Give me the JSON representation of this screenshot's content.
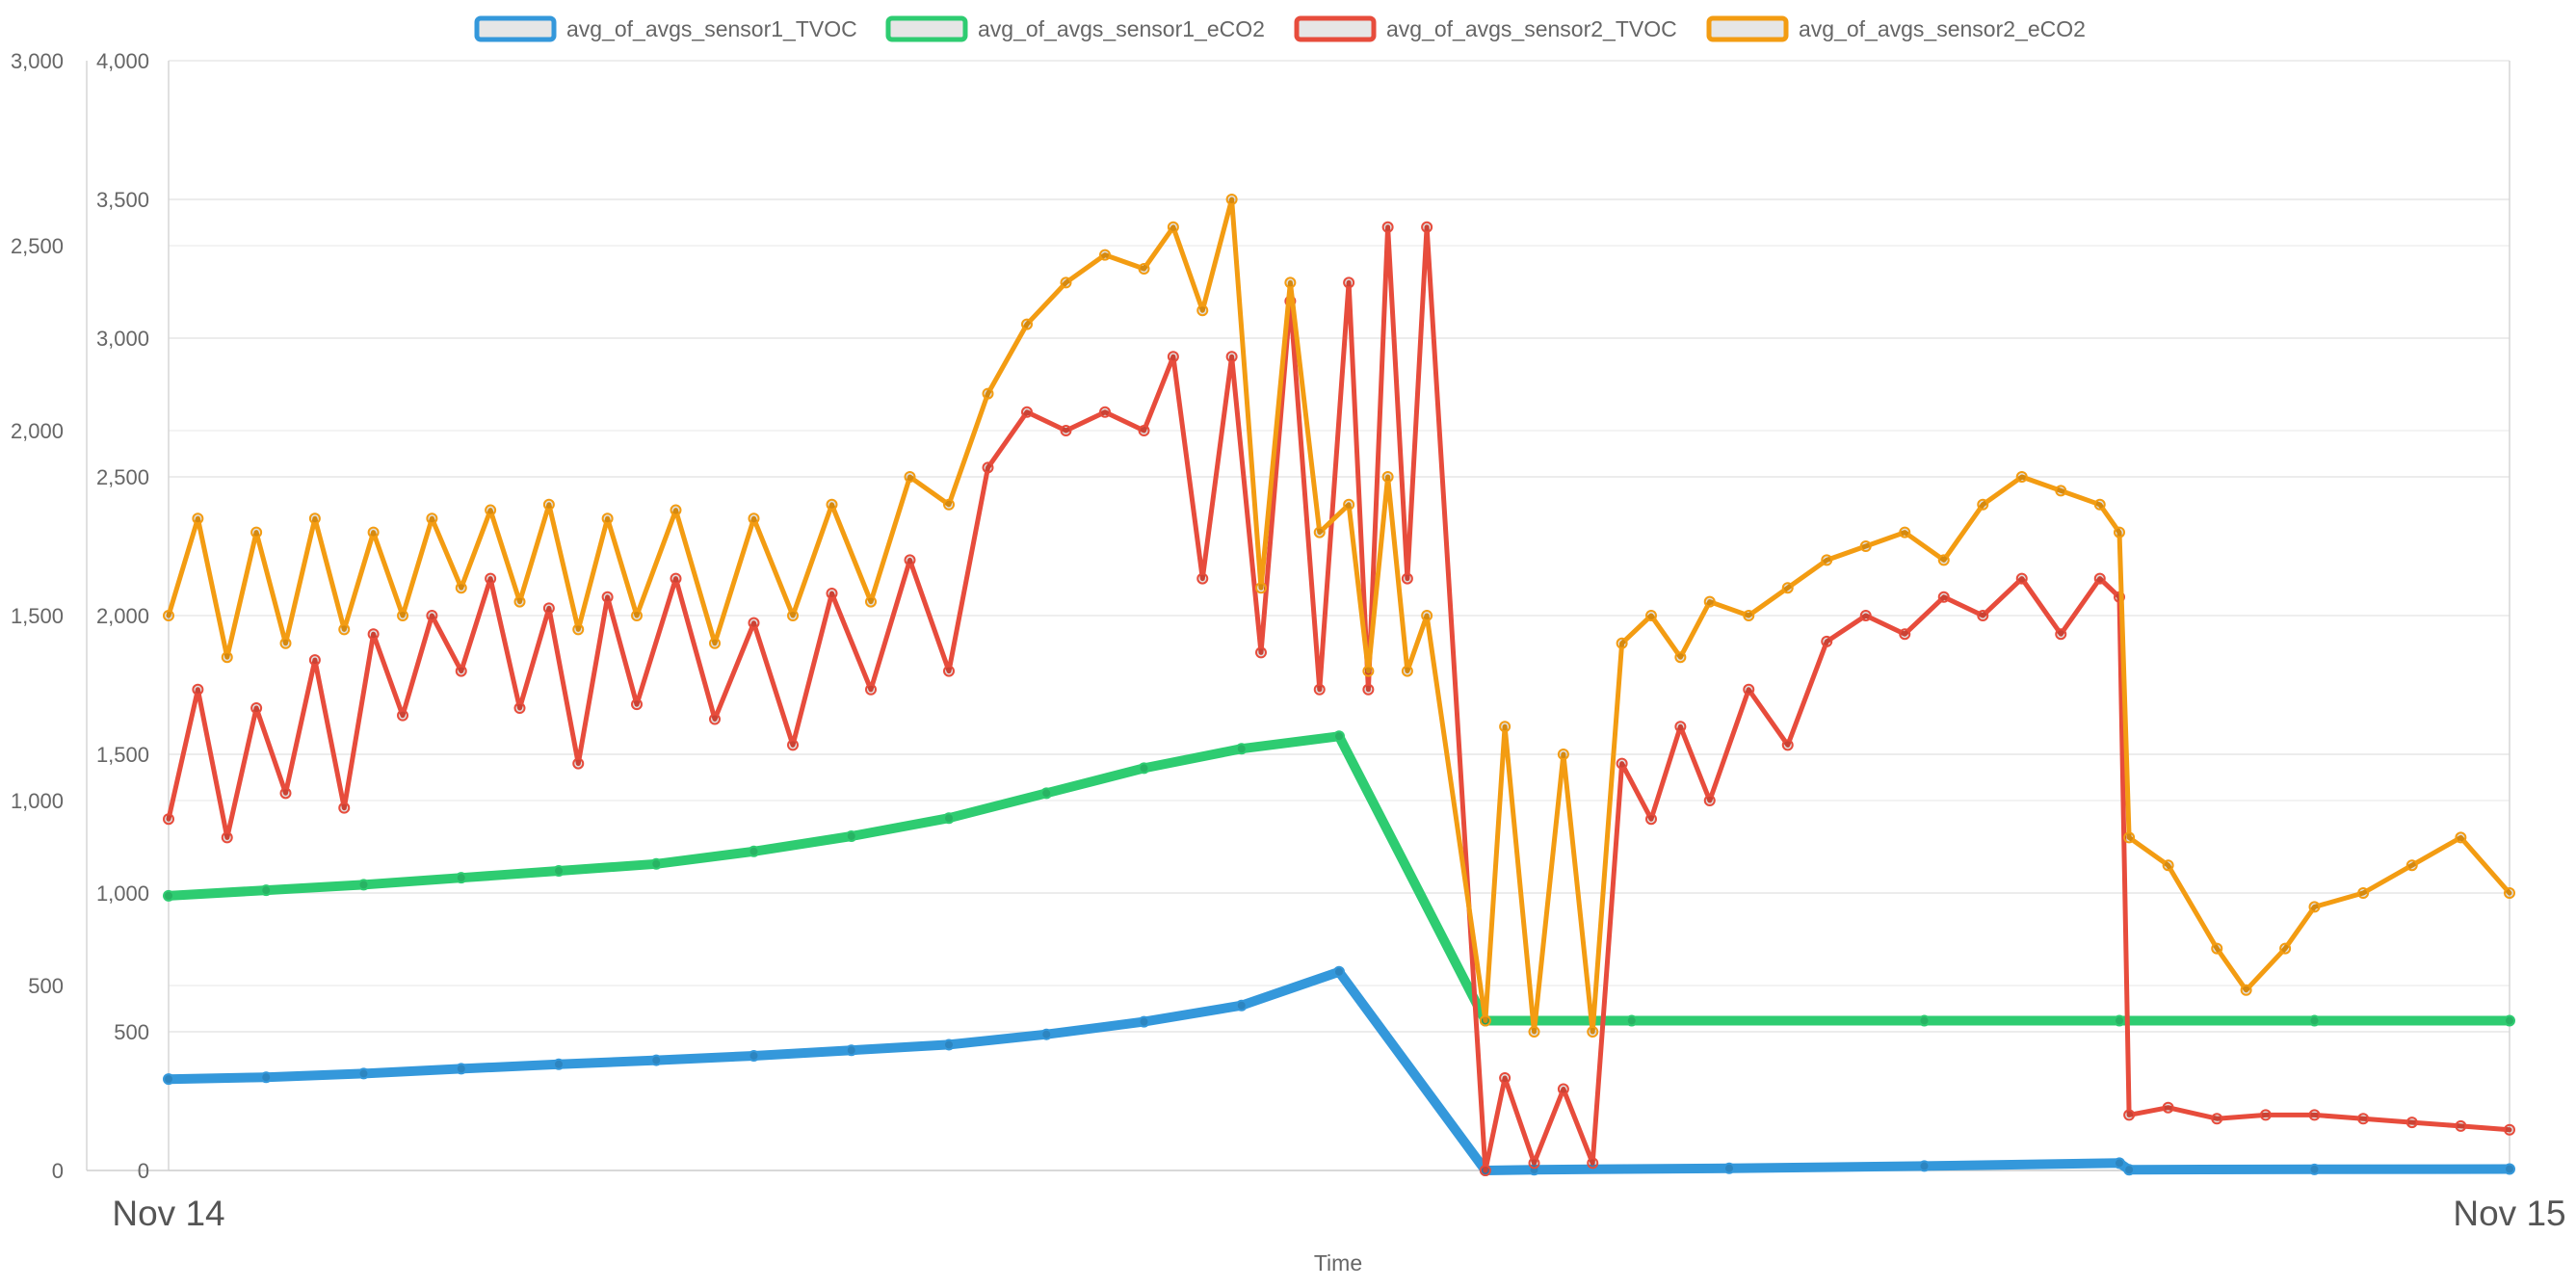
{
  "chart_data": {
    "type": "line",
    "title": "",
    "xlabel": "Time",
    "x_ticks": [
      "Nov 14",
      "Nov 15"
    ],
    "x_range_hours": [
      0,
      24
    ],
    "legend_position": "top-center",
    "grid": true,
    "y_axes": [
      {
        "id": "left",
        "range": [
          0,
          3000
        ],
        "ticks": [
          "0",
          "500",
          "1,000",
          "1,500",
          "2,000",
          "2,500",
          "3,000"
        ],
        "tick_values": [
          0,
          500,
          1000,
          1500,
          2000,
          2500,
          3000
        ]
      },
      {
        "id": "right",
        "range": [
          0,
          4000
        ],
        "ticks": [
          "0",
          "500",
          "1,000",
          "1,500",
          "2,000",
          "2,500",
          "3,000",
          "3,500",
          "4,000"
        ],
        "tick_values": [
          0,
          500,
          1000,
          1500,
          2000,
          2500,
          3000,
          3500,
          4000
        ]
      }
    ],
    "series": [
      {
        "name": "avg_of_avgs_sensor1_TVOC",
        "color": "#3498db",
        "axis": "left",
        "points": [
          [
            0,
            247
          ],
          [
            1,
            252
          ],
          [
            2,
            262
          ],
          [
            3,
            275
          ],
          [
            4,
            287
          ],
          [
            5,
            298
          ],
          [
            6,
            310
          ],
          [
            7,
            325
          ],
          [
            8,
            340
          ],
          [
            9,
            368
          ],
          [
            10,
            402
          ],
          [
            11,
            446
          ],
          [
            12,
            537
          ],
          [
            13.5,
            0
          ],
          [
            14,
            2
          ],
          [
            16,
            6
          ],
          [
            18,
            12
          ],
          [
            20,
            20
          ],
          [
            20.1,
            2
          ],
          [
            22,
            3
          ],
          [
            24,
            4
          ]
        ]
      },
      {
        "name": "avg_of_avgs_sensor1_eCO2",
        "color": "#2ecc71",
        "axis": "right",
        "points": [
          [
            0,
            990
          ],
          [
            1,
            1010
          ],
          [
            2,
            1030
          ],
          [
            3,
            1055
          ],
          [
            4,
            1080
          ],
          [
            5,
            1105
          ],
          [
            6,
            1150
          ],
          [
            7,
            1205
          ],
          [
            8,
            1270
          ],
          [
            9,
            1360
          ],
          [
            10,
            1450
          ],
          [
            11,
            1520
          ],
          [
            12,
            1565
          ],
          [
            13.5,
            540
          ],
          [
            15,
            540
          ],
          [
            18,
            540
          ],
          [
            20,
            540
          ],
          [
            22,
            540
          ],
          [
            24,
            540
          ]
        ]
      },
      {
        "name": "avg_of_avgs_sensor2_TVOC",
        "color": "#e74c3c",
        "axis": "left",
        "points": [
          [
            0,
            950
          ],
          [
            0.3,
            1300
          ],
          [
            0.6,
            900
          ],
          [
            0.9,
            1250
          ],
          [
            1.2,
            1020
          ],
          [
            1.5,
            1380
          ],
          [
            1.8,
            980
          ],
          [
            2.1,
            1450
          ],
          [
            2.4,
            1230
          ],
          [
            2.7,
            1500
          ],
          [
            3,
            1350
          ],
          [
            3.3,
            1600
          ],
          [
            3.6,
            1250
          ],
          [
            3.9,
            1520
          ],
          [
            4.2,
            1100
          ],
          [
            4.5,
            1550
          ],
          [
            4.8,
            1260
          ],
          [
            5.2,
            1600
          ],
          [
            5.6,
            1220
          ],
          [
            6,
            1480
          ],
          [
            6.4,
            1150
          ],
          [
            6.8,
            1560
          ],
          [
            7.2,
            1300
          ],
          [
            7.6,
            1650
          ],
          [
            8,
            1350
          ],
          [
            8.4,
            1900
          ],
          [
            8.8,
            2050
          ],
          [
            9.2,
            2000
          ],
          [
            9.6,
            2050
          ],
          [
            10,
            2000
          ],
          [
            10.3,
            2200
          ],
          [
            10.6,
            1600
          ],
          [
            10.9,
            2200
          ],
          [
            11.2,
            1400
          ],
          [
            11.5,
            2350
          ],
          [
            11.8,
            1300
          ],
          [
            12.1,
            2400
          ],
          [
            12.3,
            1300
          ],
          [
            12.5,
            2550
          ],
          [
            12.7,
            1600
          ],
          [
            12.9,
            2550
          ],
          [
            13.5,
            0
          ],
          [
            13.7,
            250
          ],
          [
            14,
            20
          ],
          [
            14.3,
            220
          ],
          [
            14.6,
            20
          ],
          [
            14.9,
            1100
          ],
          [
            15.2,
            950
          ],
          [
            15.5,
            1200
          ],
          [
            15.8,
            1000
          ],
          [
            16.2,
            1300
          ],
          [
            16.6,
            1150
          ],
          [
            17,
            1430
          ],
          [
            17.4,
            1500
          ],
          [
            17.8,
            1450
          ],
          [
            18.2,
            1550
          ],
          [
            18.6,
            1500
          ],
          [
            19,
            1600
          ],
          [
            19.4,
            1450
          ],
          [
            19.8,
            1600
          ],
          [
            20,
            1550
          ],
          [
            20.1,
            150
          ],
          [
            20.5,
            170
          ],
          [
            21,
            140
          ],
          [
            21.5,
            150
          ],
          [
            22,
            150
          ],
          [
            22.5,
            140
          ],
          [
            23,
            130
          ],
          [
            23.5,
            120
          ],
          [
            24,
            110
          ]
        ]
      },
      {
        "name": "avg_of_avgs_sensor2_eCO2",
        "color": "#f39c12",
        "axis": "right",
        "points": [
          [
            0,
            2000
          ],
          [
            0.3,
            2350
          ],
          [
            0.6,
            1850
          ],
          [
            0.9,
            2300
          ],
          [
            1.2,
            1900
          ],
          [
            1.5,
            2350
          ],
          [
            1.8,
            1950
          ],
          [
            2.1,
            2300
          ],
          [
            2.4,
            2000
          ],
          [
            2.7,
            2350
          ],
          [
            3,
            2100
          ],
          [
            3.3,
            2380
          ],
          [
            3.6,
            2050
          ],
          [
            3.9,
            2400
          ],
          [
            4.2,
            1950
          ],
          [
            4.5,
            2350
          ],
          [
            4.8,
            2000
          ],
          [
            5.2,
            2380
          ],
          [
            5.6,
            1900
          ],
          [
            6,
            2350
          ],
          [
            6.4,
            2000
          ],
          [
            6.8,
            2400
          ],
          [
            7.2,
            2050
          ],
          [
            7.6,
            2500
          ],
          [
            8,
            2400
          ],
          [
            8.4,
            2800
          ],
          [
            8.8,
            3050
          ],
          [
            9.2,
            3200
          ],
          [
            9.6,
            3300
          ],
          [
            10,
            3250
          ],
          [
            10.3,
            3400
          ],
          [
            10.6,
            3100
          ],
          [
            10.9,
            3500
          ],
          [
            11.2,
            2100
          ],
          [
            11.5,
            3200
          ],
          [
            11.8,
            2300
          ],
          [
            12.1,
            2400
          ],
          [
            12.3,
            1800
          ],
          [
            12.5,
            2500
          ],
          [
            12.7,
            1800
          ],
          [
            12.9,
            2000
          ],
          [
            13.5,
            540
          ],
          [
            13.7,
            1600
          ],
          [
            14,
            500
          ],
          [
            14.3,
            1500
          ],
          [
            14.6,
            500
          ],
          [
            14.9,
            1900
          ],
          [
            15.2,
            2000
          ],
          [
            15.5,
            1850
          ],
          [
            15.8,
            2050
          ],
          [
            16.2,
            2000
          ],
          [
            16.6,
            2100
          ],
          [
            17,
            2200
          ],
          [
            17.4,
            2250
          ],
          [
            17.8,
            2300
          ],
          [
            18.2,
            2200
          ],
          [
            18.6,
            2400
          ],
          [
            19,
            2500
          ],
          [
            19.4,
            2450
          ],
          [
            19.8,
            2400
          ],
          [
            20,
            2300
          ],
          [
            20.1,
            1200
          ],
          [
            20.5,
            1100
          ],
          [
            21,
            800
          ],
          [
            21.3,
            650
          ],
          [
            21.7,
            800
          ],
          [
            22,
            950
          ],
          [
            22.5,
            1000
          ],
          [
            23,
            1100
          ],
          [
            23.5,
            1200
          ],
          [
            24,
            1000
          ]
        ]
      }
    ]
  }
}
